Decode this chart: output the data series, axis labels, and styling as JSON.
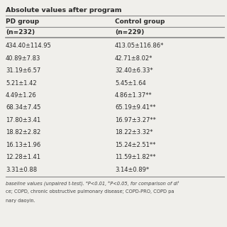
{
  "title": "Absolute values after program",
  "col1_header": "PD group",
  "col2_header": "Control group",
  "col1_sub": "(n=232)",
  "col2_sub": "(n=229)",
  "rows": [
    [
      "434.40±114.95",
      "413.05±116.86*"
    ],
    [
      "40.89±7.83",
      "42.71±8.02*"
    ],
    [
      "31.19±6.57",
      "32.40±6.33*"
    ],
    [
      "5.21±1.42",
      "5.45±1.64"
    ],
    [
      "4.49±1.26",
      "4.86±1.37**"
    ],
    [
      "68.34±7.45",
      "65.19±9.41**"
    ],
    [
      "17.80±3.41",
      "16.97±3.27**"
    ],
    [
      "18.82±2.82",
      "18.22±3.32*"
    ],
    [
      "16.13±1.96",
      "15.24±2.51**"
    ],
    [
      "12.28±1.41",
      "11.59±1.82**"
    ],
    [
      "3.31±0.88",
      "3.14±0.89*"
    ]
  ],
  "footer_lines": [
    "baseline values (unpaired t-test). ᵃP<0.01, ᵇP<0.05, for comparison of diᵗ",
    "ce; COPD, chronic obstructive pulmonary disease; COPD-PRO, COPD pa",
    "nary daoyin."
  ],
  "bg_color": "#f0efeb",
  "text_color": "#2a2a2a",
  "line_color": "#888888"
}
